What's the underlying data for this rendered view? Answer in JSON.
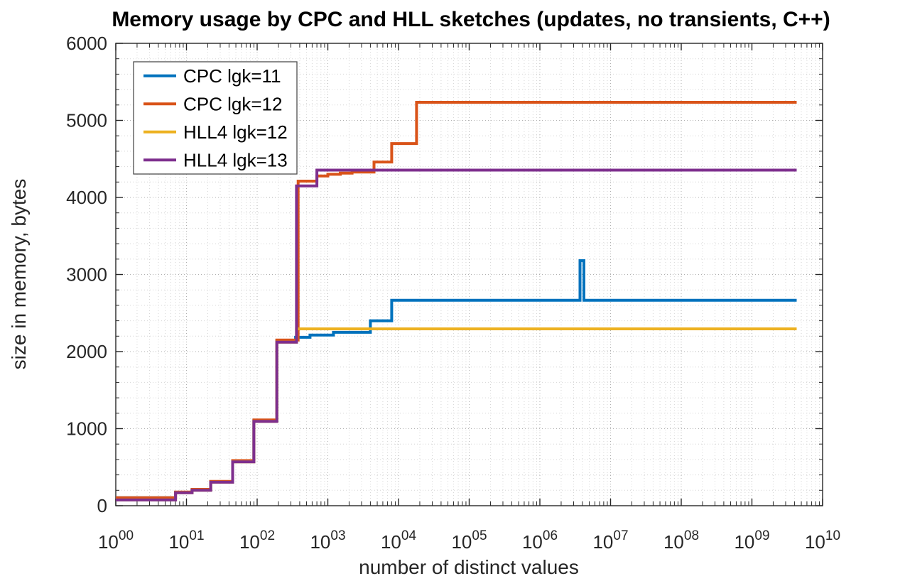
{
  "title": "Memory usage by CPC and HLL sketches (updates, no transients, C++)",
  "chart_data": {
    "type": "line",
    "title": "Memory usage by CPC and HLL sketches (updates, no transients, C++)",
    "xlabel": "number of distinct values",
    "ylabel": "size in memory, bytes",
    "x_scale": "log10",
    "xlim": [
      1,
      10000000000
    ],
    "ylim": [
      0,
      6000
    ],
    "x_tick_base": "10",
    "x_tick_exponents": [
      "00",
      "01",
      "02",
      "03",
      "04",
      "05",
      "06",
      "07",
      "08",
      "09",
      "10"
    ],
    "y_ticks": [
      0,
      1000,
      2000,
      3000,
      4000,
      5000,
      6000
    ],
    "y_minor_step": 200,
    "grid": {
      "major": true,
      "minor": true,
      "style": "dotted",
      "major_color": "#b0b0b0",
      "minor_color": "#d6d6d6"
    },
    "axis_color": "#262626",
    "background": "#ffffff",
    "legend": {
      "position": "top-left",
      "entries": [
        {
          "label": "CPC lgk=11",
          "color": "#0072BD"
        },
        {
          "label": "CPC lgk=12",
          "color": "#D95319"
        },
        {
          "label": "HLL4 lgk=12",
          "color": "#EDB120"
        },
        {
          "label": "HLL4 lgk=13",
          "color": "#7E2F8E"
        }
      ]
    },
    "series": [
      {
        "name": "CPC lgk=11",
        "color": "#0072BD",
        "step": "after",
        "points": [
          [
            1,
            104
          ],
          [
            7,
            172
          ],
          [
            12,
            205
          ],
          [
            22,
            310
          ],
          [
            45,
            578
          ],
          [
            90,
            1105
          ],
          [
            190,
            2142
          ],
          [
            350,
            2185
          ],
          [
            560,
            2215
          ],
          [
            1200,
            2250
          ],
          [
            4000,
            2400
          ],
          [
            8000,
            2665
          ],
          [
            3700000,
            3180
          ],
          [
            4200000,
            2665
          ],
          [
            4300000000,
            2665
          ]
        ]
      },
      {
        "name": "CPC lgk=12",
        "color": "#D95319",
        "step": "after",
        "points": [
          [
            1,
            104
          ],
          [
            7,
            178
          ],
          [
            12,
            212
          ],
          [
            22,
            316
          ],
          [
            45,
            585
          ],
          [
            90,
            1112
          ],
          [
            190,
            2150
          ],
          [
            380,
            4212
          ],
          [
            700,
            4278
          ],
          [
            1000,
            4300
          ],
          [
            1500,
            4315
          ],
          [
            2200,
            4330
          ],
          [
            4500,
            4460
          ],
          [
            8000,
            4700
          ],
          [
            18000,
            5235
          ],
          [
            4300000000,
            5235
          ]
        ]
      },
      {
        "name": "HLL4 lgk=12",
        "color": "#EDB120",
        "step": "after",
        "points": [
          [
            1,
            75
          ],
          [
            7,
            168
          ],
          [
            12,
            200
          ],
          [
            22,
            305
          ],
          [
            45,
            570
          ],
          [
            90,
            1095
          ],
          [
            190,
            2122
          ],
          [
            360,
            2295
          ],
          [
            4300000000,
            2295
          ]
        ]
      },
      {
        "name": "HLL4 lgk=13",
        "color": "#7E2F8E",
        "step": "after",
        "points": [
          [
            1,
            75
          ],
          [
            7,
            168
          ],
          [
            12,
            200
          ],
          [
            22,
            305
          ],
          [
            45,
            570
          ],
          [
            90,
            1095
          ],
          [
            190,
            2122
          ],
          [
            360,
            4150
          ],
          [
            700,
            4355
          ],
          [
            4300000000,
            4355
          ]
        ]
      }
    ]
  }
}
